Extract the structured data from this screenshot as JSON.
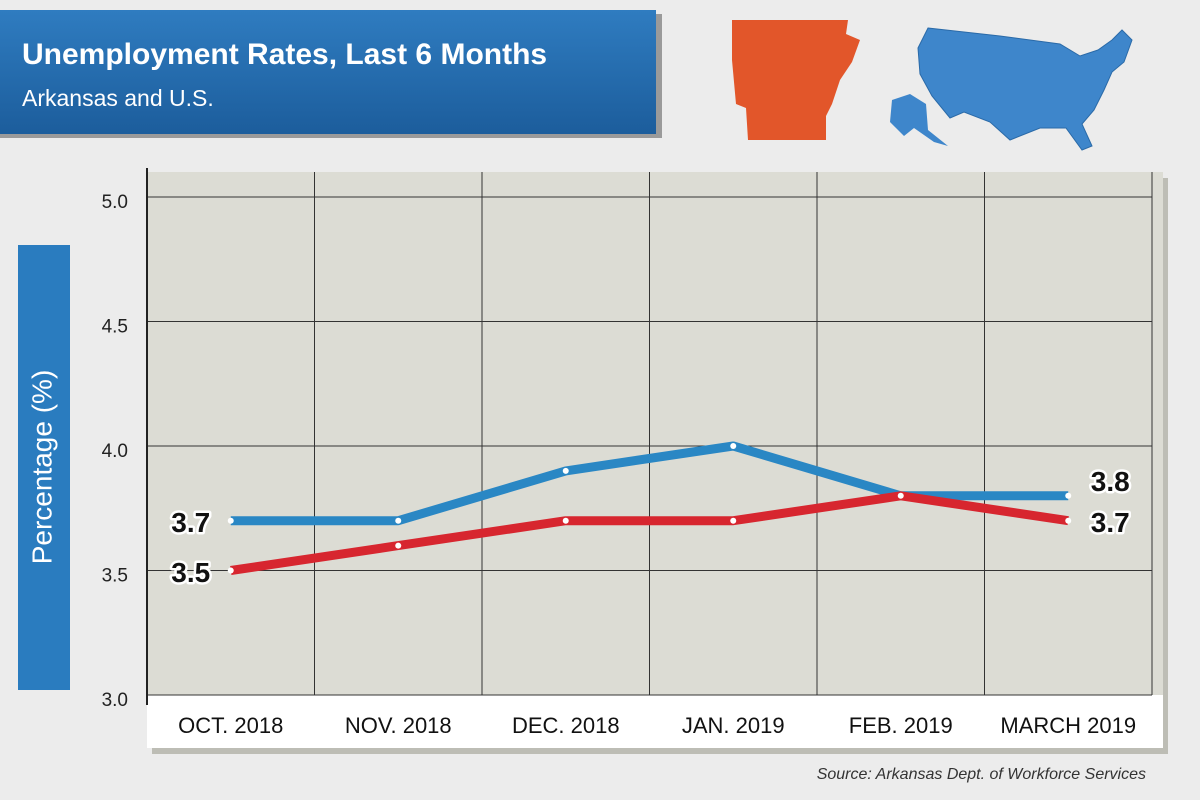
{
  "chart_data": {
    "type": "line",
    "title": "Unemployment Rates, Last 6 Months",
    "subtitle": "Arkansas and U.S.",
    "y_label": "Percentage (%)",
    "source": "Source: Arkansas Dept. of Workforce Services",
    "categories": [
      "OCT. 2018",
      "NOV. 2018",
      "DEC. 2018",
      "JAN. 2019",
      "FEB. 2019",
      "MARCH 2019"
    ],
    "series": [
      {
        "color": "#2a87c4",
        "values": [
          3.7,
          3.7,
          3.9,
          4.0,
          3.8,
          3.8
        ]
      },
      {
        "color": "#d7262f",
        "values": [
          3.5,
          3.6,
          3.7,
          3.7,
          3.8,
          3.7
        ]
      }
    ],
    "ylim": [
      3,
      5
    ],
    "yticks": [
      {
        "value": 3,
        "label": "3.0"
      },
      3.5,
      {
        "value": 4,
        "label": "4.0"
      },
      4.5,
      {
        "value": 5,
        "label": "5.0"
      }
    ],
    "grid": true
  }
}
